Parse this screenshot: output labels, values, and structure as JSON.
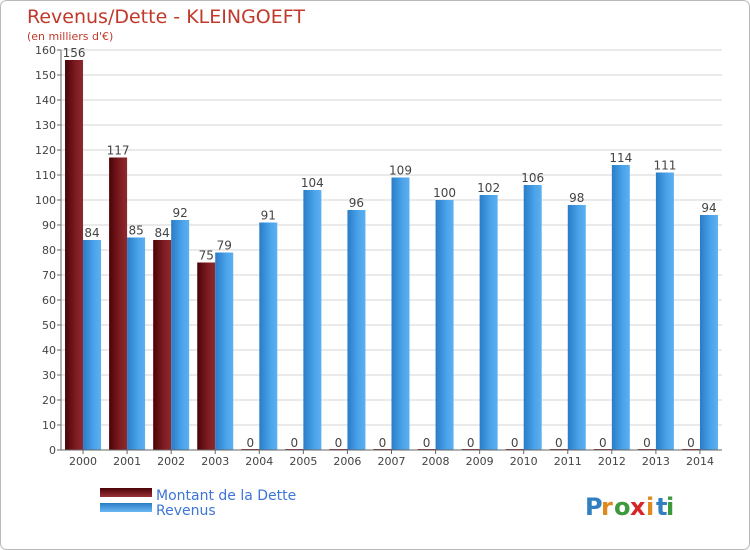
{
  "chart_data": {
    "type": "bar",
    "title": "Revenus/Dette - KLEINGOEFT",
    "subtitle": "(en milliers d'€)",
    "categories": [
      "2000",
      "2001",
      "2002",
      "2003",
      "2004",
      "2005",
      "2006",
      "2007",
      "2008",
      "2009",
      "2010",
      "2011",
      "2012",
      "2013",
      "2014"
    ],
    "series": [
      {
        "name": "Montant de la Dette",
        "color": "#6b0f14",
        "values": [
          156,
          117,
          84,
          75,
          0,
          0,
          0,
          0,
          0,
          0,
          0,
          0,
          0,
          0,
          0
        ]
      },
      {
        "name": "Revenus",
        "color": "#3d95dc",
        "values": [
          84,
          85,
          92,
          79,
          91,
          104,
          96,
          109,
          100,
          102,
          106,
          98,
          114,
          111,
          94
        ]
      }
    ],
    "ylim": [
      0,
      160
    ],
    "yticks": [
      0,
      10,
      20,
      30,
      40,
      50,
      60,
      70,
      80,
      90,
      100,
      110,
      120,
      130,
      140,
      150,
      160
    ],
    "grid": true,
    "legend_position": "bottom-left",
    "xlabel": "",
    "ylabel": ""
  },
  "brand": {
    "letters": [
      "P",
      "r",
      "o",
      "x",
      "i",
      "t",
      "i"
    ],
    "colors": [
      "#2f7fc1",
      "#e08a1e",
      "#3c9a3c",
      "#d6262a",
      "#e08a1e",
      "#2f7fc1",
      "#3c9a3c"
    ]
  }
}
